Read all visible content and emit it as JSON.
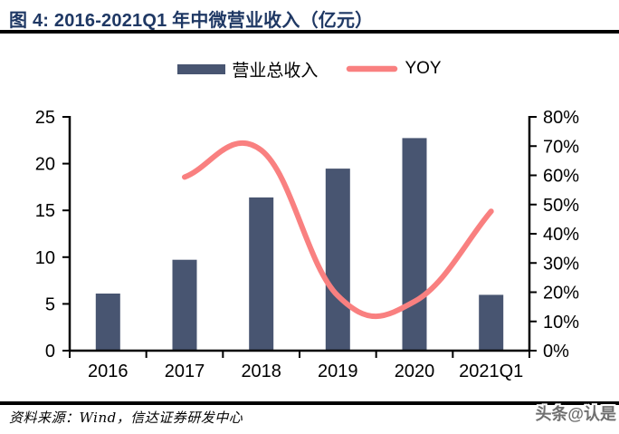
{
  "header": {
    "title": "图 4: 2016-2021Q1 年中微营业收入（亿元）"
  },
  "legend": {
    "items": [
      {
        "label": "营业总收入",
        "type": "bar",
        "color": "#485571"
      },
      {
        "label": "YOY",
        "type": "line",
        "color": "#F98080"
      }
    ]
  },
  "chart_data": {
    "type": "bar",
    "title": "2016-2021Q1 年中微营业收入（亿元）",
    "categories": [
      "2016",
      "2017",
      "2018",
      "2019",
      "2020",
      "2021Q1"
    ],
    "series": [
      {
        "name": "营业总收入",
        "type": "bar",
        "axis": "left",
        "color": "#485571",
        "values": [
          6.1,
          9.72,
          16.39,
          19.47,
          22.73,
          5.97
        ]
      },
      {
        "name": "YOY",
        "type": "line",
        "axis": "right",
        "color": "#F98080",
        "values": [
          null,
          59.4,
          68.6,
          18.8,
          16.8,
          47.7
        ]
      }
    ],
    "left_axis": {
      "min": 0,
      "max": 25,
      "step": 5,
      "tick_labels": [
        "0",
        "5",
        "10",
        "15",
        "20",
        "25"
      ]
    },
    "right_axis": {
      "min": 0,
      "max": 80,
      "step": 10,
      "unit": "%",
      "tick_labels": [
        "0%",
        "10%",
        "20%",
        "30%",
        "40%",
        "50%",
        "60%",
        "70%",
        "80%"
      ]
    },
    "grid": false,
    "legend_position": "top"
  },
  "footer": {
    "source": "资料来源：Wind，信达证券研发中心",
    "watermark": "头条@认是"
  },
  "colors": {
    "title": "#1F3864",
    "rule": "#000000",
    "bar": "#485571",
    "line": "#F98080",
    "axis": "#000000",
    "watermark": "#6F6F6F"
  }
}
